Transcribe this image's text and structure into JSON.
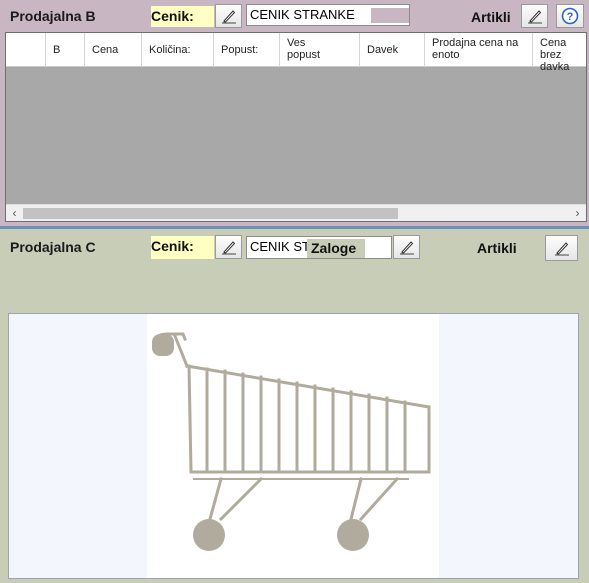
{
  "panel_b": {
    "title": "Prodajalna B",
    "cenik_label": "Cenik:",
    "cenik_value": "CENIK STRANKE",
    "artikli_label": "Artikli",
    "help_icon": "help-icon",
    "edit_icon": "pencil-icon",
    "grid": {
      "columns": [
        {
          "label": ""
        },
        {
          "label": "B"
        },
        {
          "label": "Cena"
        },
        {
          "label": "Količina:"
        },
        {
          "label": "Popust:"
        },
        {
          "label": "Ves popust"
        },
        {
          "label": "Davek"
        },
        {
          "label": "Prodajna cena na enoto"
        },
        {
          "label": "Cena brez davka"
        }
      ],
      "rows": []
    }
  },
  "panel_c": {
    "title": "Prodajalna C",
    "cenik_label": "Cenik:",
    "cenik_value": "CENIK ST",
    "zaloge_label": "Zaloge",
    "artikli_label": "Artikli",
    "image_icon": "shopping-cart-icon"
  },
  "colors": {
    "panel_b_bg": "#c9b6c3",
    "panel_c_bg": "#c8cdb8",
    "cenik_label_bg": "#ffffc4",
    "cart_color": "#b0ab9c"
  }
}
